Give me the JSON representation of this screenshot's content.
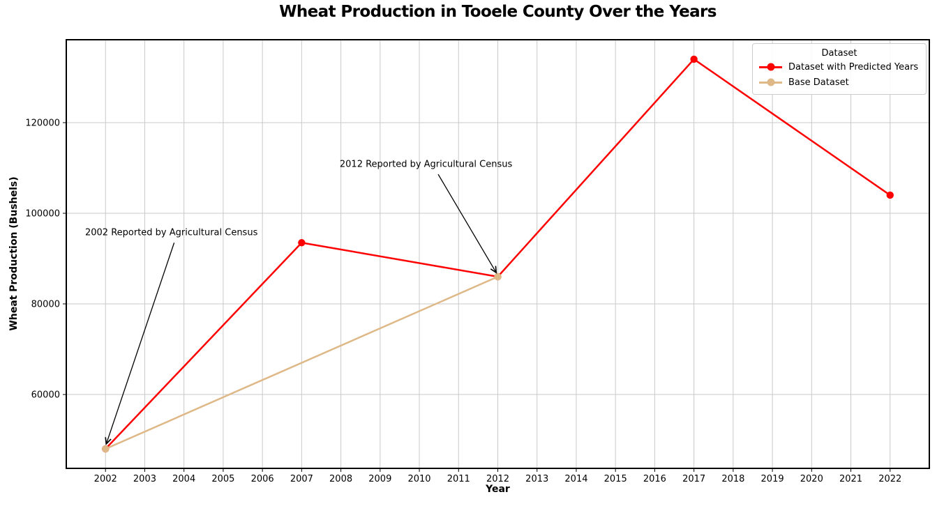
{
  "chart_data": {
    "type": "line",
    "title": "Wheat Production in Tooele County Over the Years",
    "xlabel": "Year",
    "ylabel": "Wheat Production (Bushels)",
    "xlim": [
      2001,
      2023
    ],
    "ylim": [
      43700,
      138300
    ],
    "x_ticks": [
      2002,
      2003,
      2004,
      2005,
      2006,
      2007,
      2008,
      2009,
      2010,
      2011,
      2012,
      2013,
      2014,
      2015,
      2016,
      2017,
      2018,
      2019,
      2020,
      2021,
      2022
    ],
    "y_ticks": [
      60000,
      80000,
      100000,
      120000
    ],
    "grid": true,
    "grid_color": "#c9c9c9",
    "frame_color": "#000000",
    "legend": {
      "title": "Dataset",
      "position": "upper right"
    },
    "series": [
      {
        "name": "Dataset with Predicted Years",
        "color": "#ff0000",
        "x": [
          2002,
          2007,
          2012,
          2017,
          2022
        ],
        "values": [
          48000,
          93500,
          86000,
          134000,
          104000
        ]
      },
      {
        "name": "Base Dataset",
        "color": "#deb887",
        "x": [
          2002,
          2012
        ],
        "values": [
          48000,
          86000
        ]
      }
    ],
    "annotations": [
      {
        "text": "2002 Reported by Agricultural Census",
        "text_x": 2001.48,
        "text_y": 95700,
        "arrow_from_x": 2003.75,
        "arrow_from_y": 93500,
        "arrow_to_x": 2002.02,
        "arrow_to_y": 49100,
        "arrow_color": "#000000"
      },
      {
        "text": "2012 Reported by Agricultural Census",
        "text_x": 2007.97,
        "text_y": 110800,
        "arrow_from_x": 2010.48,
        "arrow_from_y": 108600,
        "arrow_to_x": 2011.96,
        "arrow_to_y": 86900,
        "arrow_color": "#000000"
      }
    ]
  }
}
